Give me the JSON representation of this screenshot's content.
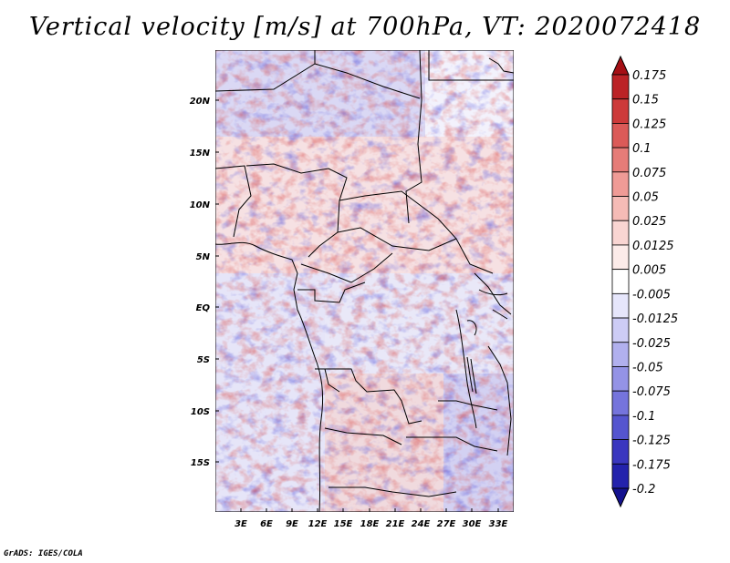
{
  "title": "Vertical velocity [m/s] at 700hPa, VT: 2020072418",
  "credit": "GrADS: IGES/COLA",
  "map": {
    "lat_labels": [
      "20N",
      "15N",
      "10N",
      "5N",
      "EQ",
      "5S",
      "10S",
      "15S"
    ],
    "lon_labels": [
      "3E",
      "6E",
      "9E",
      "12E",
      "15E",
      "18E",
      "21E",
      "24E",
      "27E",
      "30E",
      "33E"
    ]
  },
  "colorbar": {
    "labels": [
      "0.175",
      "0.15",
      "0.125",
      "0.1",
      "0.075",
      "0.05",
      "0.025",
      "0.0125",
      "0.005",
      "-0.005",
      "-0.0125",
      "-0.025",
      "-0.05",
      "-0.075",
      "-0.1",
      "-0.125",
      "-0.175",
      "-0.2"
    ],
    "colors": [
      "#a50f15",
      "#bb2226",
      "#cd3a3a",
      "#db5a58",
      "#e67c78",
      "#ef9b96",
      "#f5bbb6",
      "#f9d5d2",
      "#fcebe9",
      "#ffffff",
      "#e6e6fb",
      "#cdccf5",
      "#b1b0ee",
      "#9493e6",
      "#7574dc",
      "#5555cf",
      "#3a37bf",
      "#2322ac",
      "#14128f"
    ]
  }
}
